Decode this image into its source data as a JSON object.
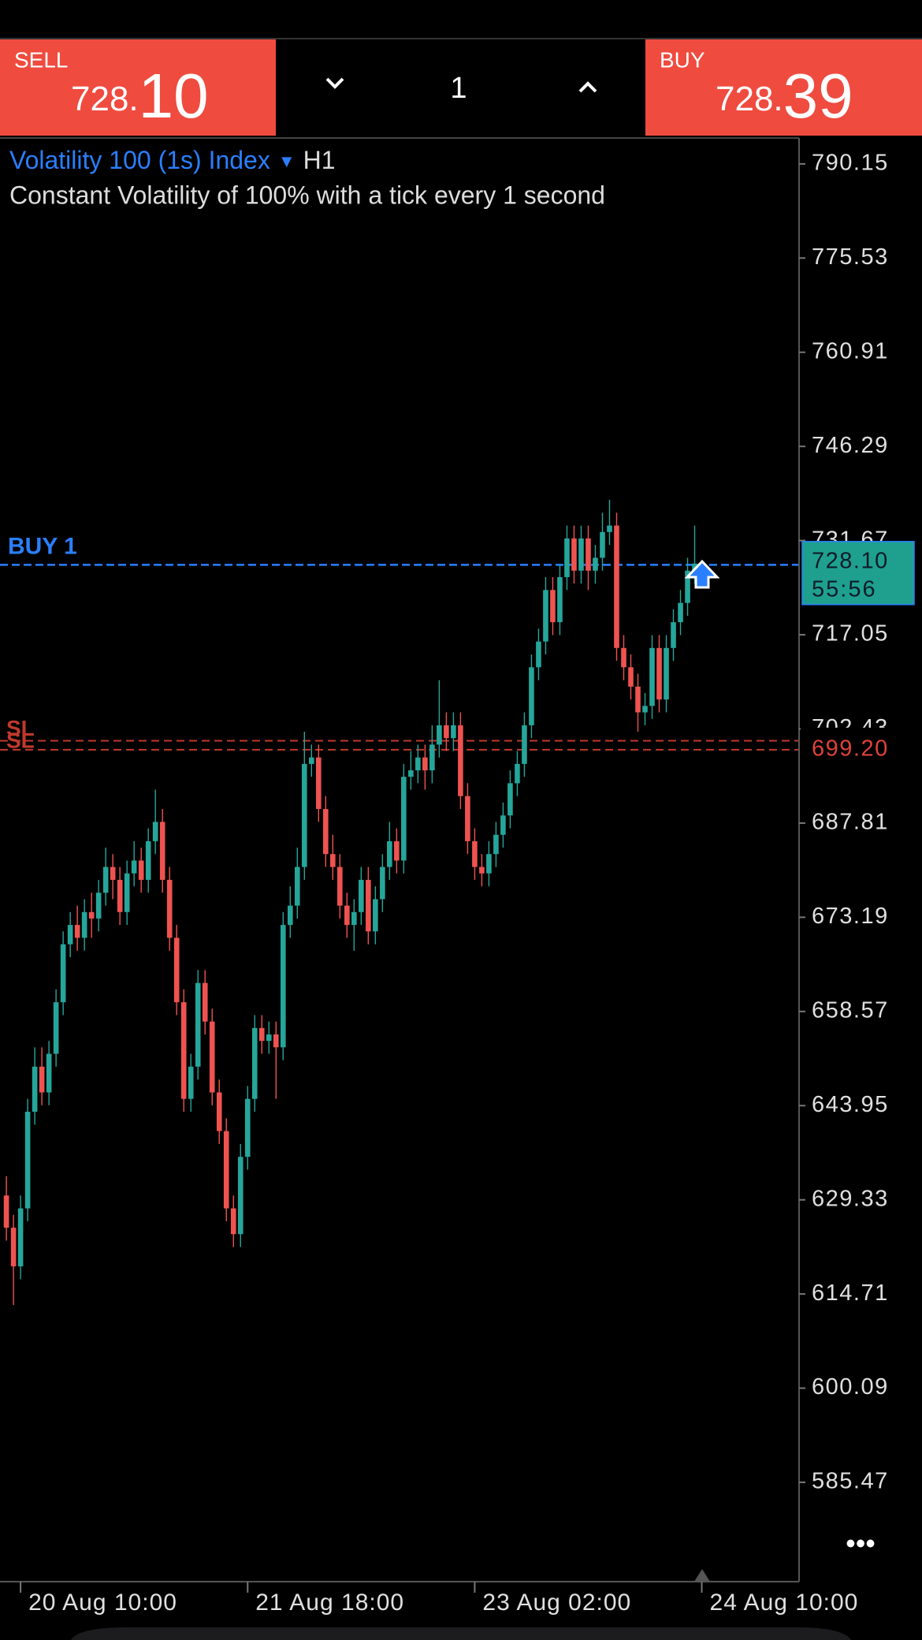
{
  "header": {
    "sell": {
      "label": "SELL",
      "price_small": "728.",
      "price_big": "10"
    },
    "buy": {
      "label": "BUY",
      "price_small": "728.",
      "price_big": "39"
    },
    "lot": "1"
  },
  "chart_data": {
    "type": "candlestick",
    "title": "Volatility 100 (1s) Index",
    "timeframe": "H1",
    "subtitle": "Constant Volatility of 100% with a tick every 1 second",
    "up_color": "#26a69a",
    "down_color": "#ef5350",
    "ylim": [
      570.05,
      794.05
    ],
    "yticks": [
      790.15,
      775.53,
      760.91,
      746.29,
      731.67,
      717.05,
      702.43,
      687.81,
      673.19,
      658.57,
      643.95,
      629.33,
      614.71,
      600.09,
      585.47
    ],
    "xlim": [
      -0.9,
      111.6
    ],
    "xticks": [
      {
        "value": 2,
        "label": "20 Aug 10:00"
      },
      {
        "value": 34,
        "label": "21 Aug 18:00"
      },
      {
        "value": 66,
        "label": "23 Aug 02:00"
      },
      {
        "value": 98,
        "label": "24 Aug 10:00"
      }
    ],
    "x": [
      0,
      1,
      2,
      3,
      4,
      5,
      6,
      7,
      8,
      9,
      10,
      11,
      12,
      13,
      14,
      15,
      16,
      17,
      18,
      19,
      20,
      21,
      22,
      23,
      24,
      25,
      26,
      27,
      28,
      29,
      30,
      31,
      32,
      33,
      34,
      35,
      36,
      37,
      38,
      39,
      40,
      41,
      42,
      43,
      44,
      45,
      46,
      47,
      48,
      49,
      50,
      51,
      52,
      53,
      54,
      55,
      56,
      57,
      58,
      59,
      60,
      61,
      62,
      63,
      64,
      65,
      66,
      67,
      68,
      69,
      70,
      71,
      72,
      73,
      74,
      75,
      76,
      77,
      78,
      79,
      80,
      81,
      82,
      83,
      84,
      85,
      86,
      87,
      88,
      89,
      90,
      91,
      92,
      93,
      94,
      95,
      96,
      97
    ],
    "open": [
      630,
      625,
      619,
      628,
      643,
      650,
      646,
      652,
      660,
      669,
      672,
      670,
      674,
      673,
      677,
      681,
      679,
      674,
      680,
      682,
      679,
      685,
      688,
      679,
      670,
      660,
      645,
      650,
      663,
      657,
      646,
      640,
      628,
      624,
      636,
      645,
      656,
      654,
      655,
      653,
      672,
      675,
      681,
      697,
      698,
      690,
      683,
      681,
      675,
      672,
      674,
      679,
      671,
      676,
      681,
      685,
      682,
      695,
      696,
      698,
      696,
      700,
      703,
      701,
      703,
      692,
      685,
      681,
      680,
      683,
      686,
      689,
      694,
      697,
      703,
      712,
      716,
      724,
      719,
      726,
      732,
      727,
      732,
      727,
      729,
      733,
      734,
      715,
      712,
      709,
      705,
      706,
      715,
      707,
      715,
      719,
      722,
      727
    ],
    "high": [
      633,
      627,
      630,
      645,
      653,
      653,
      654,
      662,
      671,
      674,
      675,
      676,
      677,
      679,
      684,
      683,
      681,
      682,
      685,
      684,
      687,
      693,
      690,
      681,
      672,
      662,
      652,
      665,
      665,
      659,
      648,
      642,
      630,
      638,
      647,
      658,
      658,
      657,
      657,
      674,
      678,
      684,
      702,
      700,
      700,
      692,
      686,
      683,
      677,
      676,
      681,
      681,
      678,
      683,
      688,
      687,
      697,
      699,
      700,
      700,
      703,
      710,
      705,
      705,
      705,
      694,
      687,
      683,
      685,
      688,
      691,
      696,
      699,
      705,
      714,
      718,
      726,
      726,
      728,
      734,
      734,
      734,
      734,
      731,
      736,
      738,
      736,
      717,
      714,
      711,
      708,
      717,
      717,
      717,
      721,
      724,
      729,
      734
    ],
    "low": [
      623,
      613,
      617,
      626,
      641,
      644,
      644,
      650,
      658,
      667,
      668,
      668,
      670,
      671,
      675,
      676,
      672,
      672,
      678,
      677,
      677,
      683,
      677,
      668,
      658,
      643,
      643,
      648,
      655,
      644,
      638,
      626,
      622,
      622,
      634,
      643,
      652,
      652,
      645,
      651,
      670,
      673,
      679,
      695,
      688,
      681,
      679,
      673,
      670,
      668,
      672,
      669,
      669,
      674,
      679,
      680,
      680,
      693,
      694,
      693,
      694,
      698,
      699,
      699,
      690,
      683,
      679,
      678,
      678,
      681,
      684,
      687,
      692,
      695,
      701,
      710,
      714,
      717,
      717,
      724,
      725,
      725,
      724,
      725,
      727,
      731,
      713,
      710,
      707,
      702,
      703,
      704,
      705,
      705,
      713,
      717,
      720,
      725
    ],
    "close": [
      625,
      619,
      628,
      643,
      650,
      646,
      652,
      660,
      669,
      672,
      670,
      674,
      673,
      677,
      681,
      679,
      674,
      680,
      682,
      679,
      685,
      688,
      679,
      670,
      660,
      645,
      650,
      663,
      657,
      646,
      640,
      628,
      624,
      636,
      645,
      656,
      654,
      655,
      653,
      672,
      675,
      681,
      697,
      698,
      690,
      683,
      681,
      675,
      672,
      674,
      679,
      671,
      676,
      681,
      685,
      682,
      695,
      696,
      698,
      696,
      700,
      703,
      701,
      703,
      692,
      685,
      681,
      680,
      683,
      686,
      689,
      694,
      697,
      703,
      712,
      716,
      724,
      719,
      726,
      732,
      727,
      732,
      727,
      729,
      733,
      734,
      715,
      712,
      709,
      705,
      706,
      715,
      707,
      715,
      719,
      722,
      727,
      728.1
    ],
    "current": {
      "value": 728.1,
      "label": "728.10",
      "timer": "55:56"
    },
    "buy_line": {
      "label": "BUY 1",
      "value": 727.9,
      "color": "#2a7fff"
    },
    "sl_lines": [
      {
        "label": "SL",
        "value": 700.6
      },
      {
        "label": "SL",
        "value": 699.2,
        "price_label": "699.20"
      }
    ],
    "sl_color": "#c0392b"
  }
}
